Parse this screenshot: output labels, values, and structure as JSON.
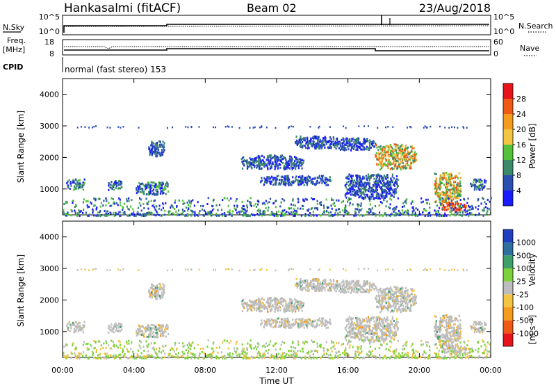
{
  "header": {
    "station": "Hankasalmi (fitACF)",
    "beam": "Beam 02",
    "date": "23/Aug/2018"
  },
  "noise_panel": {
    "left_label": "N.Sky",
    "right_label": "N.Search",
    "left_ticks": [
      "10^5",
      "10^0"
    ],
    "right_ticks": [
      "10^5",
      "10^0"
    ]
  },
  "freq_panel": {
    "left_label_top": "Freq.",
    "left_label_unit": "[MHz]",
    "left_ticks": [
      "18",
      "8"
    ],
    "right_label": "Nave",
    "right_ticks": [
      "60",
      "0"
    ],
    "cpid_label": "CPID",
    "cpid_text": "normal (fast stereo) 153"
  },
  "chart_data": [
    {
      "type": "heatmap",
      "title": "",
      "ylabel": "Slant Range [km]",
      "xlabel": "",
      "x_range_hours": [
        0,
        24
      ],
      "ylim": [
        180,
        4500
      ],
      "yticks": [
        "1000",
        "2000",
        "3000",
        "4000"
      ],
      "colorbar": {
        "label": "Power [dB]",
        "ticks": [
          "4",
          "8",
          "12",
          "16",
          "20",
          "24",
          "28"
        ],
        "colors": [
          "#1a1aff",
          "#2a4fb0",
          "#3b8a6a",
          "#53c23a",
          "#f4c542",
          "#f59b1e",
          "#ef5a16",
          "#e8141b"
        ]
      },
      "echo_regions": [
        {
          "t0": 0.2,
          "t1": 1.2,
          "r0": 1000,
          "r1": 1350,
          "level": "moderate"
        },
        {
          "t0": 2.5,
          "t1": 3.3,
          "r0": 1000,
          "r1": 1300,
          "level": "moderate"
        },
        {
          "t0": 4.1,
          "t1": 5.9,
          "r0": 850,
          "r1": 1250,
          "level": "moderate"
        },
        {
          "t0": 4.8,
          "t1": 5.7,
          "r0": 2050,
          "r1": 2550,
          "level": "weak"
        },
        {
          "t0": 10.0,
          "t1": 13.5,
          "r0": 1650,
          "r1": 2100,
          "level": "weak"
        },
        {
          "t0": 11.0,
          "t1": 15.0,
          "r0": 1150,
          "r1": 1450,
          "level": "weak"
        },
        {
          "t0": 13.0,
          "t1": 15.4,
          "r0": 2300,
          "r1": 2700,
          "level": "weak"
        },
        {
          "t0": 15.2,
          "t1": 17.5,
          "r0": 2250,
          "r1": 2650,
          "level": "weak"
        },
        {
          "t0": 17.5,
          "t1": 19.8,
          "r0": 1650,
          "r1": 2450,
          "level": "strong"
        },
        {
          "t0": 15.8,
          "t1": 18.8,
          "r0": 700,
          "r1": 1500,
          "level": "weak"
        },
        {
          "t0": 20.8,
          "t1": 22.3,
          "r0": 600,
          "r1": 1550,
          "level": "strong"
        },
        {
          "t0": 21.2,
          "t1": 22.6,
          "r0": 300,
          "r1": 600,
          "level": "very-strong"
        },
        {
          "t0": 22.8,
          "t1": 23.7,
          "r0": 1000,
          "r1": 1350,
          "level": "moderate"
        },
        {
          "t0": 0.0,
          "t1": 24.0,
          "r0": 180,
          "r1": 750,
          "level": "ground-scatter"
        }
      ]
    },
    {
      "type": "heatmap",
      "title": "",
      "ylabel": "Slant Range [km]",
      "xlabel": "Time UT",
      "x_range_hours": [
        0,
        24
      ],
      "ylim": [
        180,
        4500
      ],
      "yticks": [
        "1000",
        "2000",
        "3000",
        "4000"
      ],
      "xticks": [
        "00:00",
        "04:00",
        "08:00",
        "12:00",
        "16:00",
        "20:00",
        "00:00"
      ],
      "colorbar": {
        "label": "Velocity",
        "unit": "[m s⁻¹]",
        "ticks": [
          "1000",
          "500",
          "100",
          "25",
          "-25",
          "-100",
          "-500",
          "-1000"
        ],
        "colors": [
          "#1f3fbf",
          "#2f6fa0",
          "#3f9f6a",
          "#7dd23a",
          "#bdbdbd",
          "#f4c542",
          "#f59b1e",
          "#ef5a16",
          "#e8141b"
        ]
      }
    }
  ]
}
